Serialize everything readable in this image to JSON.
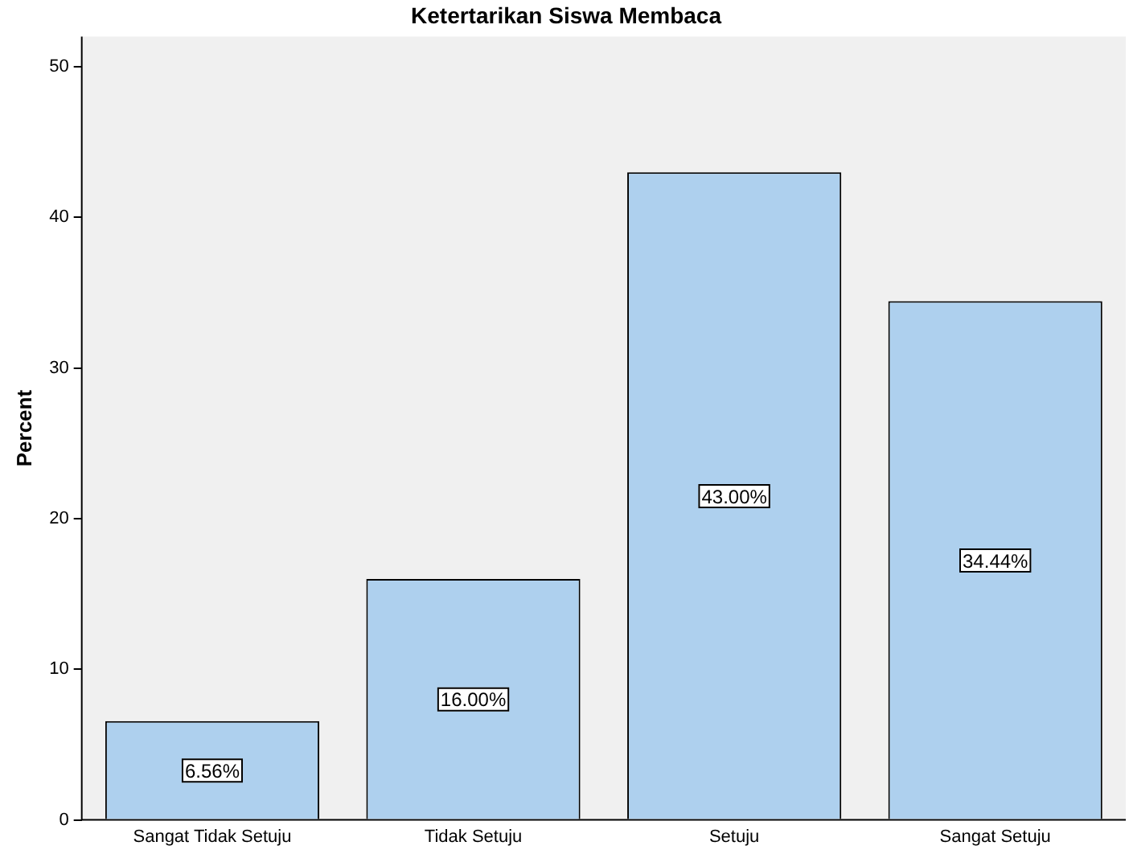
{
  "chart_data": {
    "type": "bar",
    "title": "Ketertarikan Siswa Membaca",
    "ylabel": "Percent",
    "categories": [
      "Sangat Tidak Setuju",
      "Tidak Setuju",
      "Setuju",
      "Sangat Setuju"
    ],
    "values": [
      6.56,
      16.0,
      43.0,
      34.44
    ],
    "value_labels": [
      "6.56%",
      "16.00%",
      "43.00%",
      "34.44%"
    ],
    "color": "#aed0ee",
    "ylim": [
      0,
      52
    ],
    "yticks": [
      0,
      10,
      20,
      30,
      40,
      50
    ],
    "grid": false,
    "legend": false
  }
}
